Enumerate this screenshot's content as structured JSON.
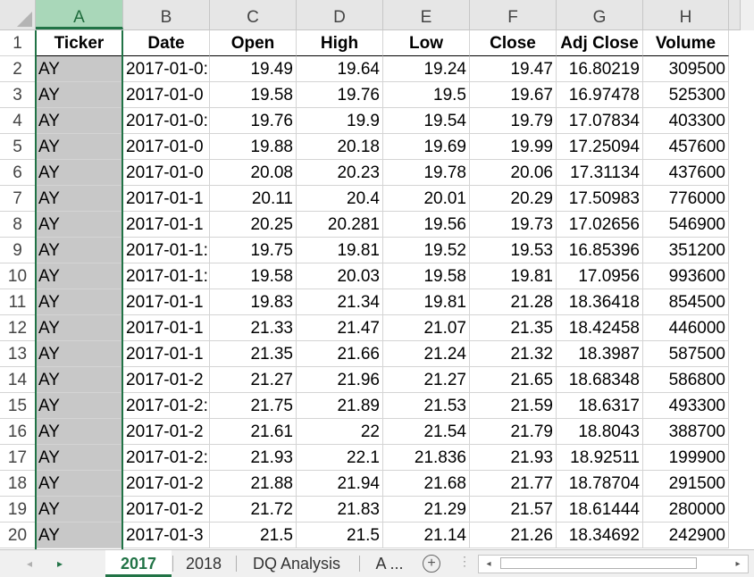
{
  "columns": [
    "A",
    "B",
    "C",
    "D",
    "E",
    "F",
    "G",
    "H"
  ],
  "selected_column": "A",
  "row_numbers": [
    "1",
    "2",
    "3",
    "4",
    "5",
    "6",
    "7",
    "8",
    "9",
    "10",
    "11",
    "12",
    "13",
    "14",
    "15",
    "16",
    "17",
    "18",
    "19",
    "20"
  ],
  "header": [
    "Ticker",
    "Date",
    "Open",
    "High",
    "Low",
    "Close",
    "Adj Close",
    "Volume"
  ],
  "rows": [
    [
      "AY",
      "2017-01-0:",
      "19.49",
      "19.64",
      "19.24",
      "19.47",
      "16.80219",
      "309500"
    ],
    [
      "AY",
      "2017-01-0",
      "19.58",
      "19.76",
      "19.5",
      "19.67",
      "16.97478",
      "525300"
    ],
    [
      "AY",
      "2017-01-0:",
      "19.76",
      "19.9",
      "19.54",
      "19.79",
      "17.07834",
      "403300"
    ],
    [
      "AY",
      "2017-01-0",
      "19.88",
      "20.18",
      "19.69",
      "19.99",
      "17.25094",
      "457600"
    ],
    [
      "AY",
      "2017-01-0",
      "20.08",
      "20.23",
      "19.78",
      "20.06",
      "17.31134",
      "437600"
    ],
    [
      "AY",
      "2017-01-1",
      "20.11",
      "20.4",
      "20.01",
      "20.29",
      "17.50983",
      "776000"
    ],
    [
      "AY",
      "2017-01-1",
      "20.25",
      "20.281",
      "19.56",
      "19.73",
      "17.02656",
      "546900"
    ],
    [
      "AY",
      "2017-01-1:",
      "19.75",
      "19.81",
      "19.52",
      "19.53",
      "16.85396",
      "351200"
    ],
    [
      "AY",
      "2017-01-1:",
      "19.58",
      "20.03",
      "19.58",
      "19.81",
      "17.0956",
      "993600"
    ],
    [
      "AY",
      "2017-01-1",
      "19.83",
      "21.34",
      "19.81",
      "21.28",
      "18.36418",
      "854500"
    ],
    [
      "AY",
      "2017-01-1",
      "21.33",
      "21.47",
      "21.07",
      "21.35",
      "18.42458",
      "446000"
    ],
    [
      "AY",
      "2017-01-1",
      "21.35",
      "21.66",
      "21.24",
      "21.32",
      "18.3987",
      "587500"
    ],
    [
      "AY",
      "2017-01-2",
      "21.27",
      "21.96",
      "21.27",
      "21.65",
      "18.68348",
      "586800"
    ],
    [
      "AY",
      "2017-01-2:",
      "21.75",
      "21.89",
      "21.53",
      "21.59",
      "18.6317",
      "493300"
    ],
    [
      "AY",
      "2017-01-2",
      "21.61",
      "22",
      "21.54",
      "21.79",
      "18.8043",
      "388700"
    ],
    [
      "AY",
      "2017-01-2:",
      "21.93",
      "22.1",
      "21.836",
      "21.93",
      "18.92511",
      "199900"
    ],
    [
      "AY",
      "2017-01-2",
      "21.88",
      "21.94",
      "21.68",
      "21.77",
      "18.78704",
      "291500"
    ],
    [
      "AY",
      "2017-01-2",
      "21.72",
      "21.83",
      "21.29",
      "21.57",
      "18.61444",
      "280000"
    ],
    [
      "AY",
      "2017-01-3",
      "21.5",
      "21.5",
      "21.14",
      "21.26",
      "18.34692",
      "242900"
    ]
  ],
  "tabs": [
    "2017",
    "2018",
    "DQ Analysis",
    "A ..."
  ],
  "active_tab": "2017",
  "icons": {
    "nav_prev": "◂",
    "nav_next": "▸",
    "add_sheet": "+",
    "more": "⋮",
    "scroll_left": "◂",
    "scroll_right": "▸"
  },
  "colors": {
    "accent": "#217346",
    "selected_column_fill": "#c8c8c8",
    "header_fill": "#e6e6e6"
  }
}
